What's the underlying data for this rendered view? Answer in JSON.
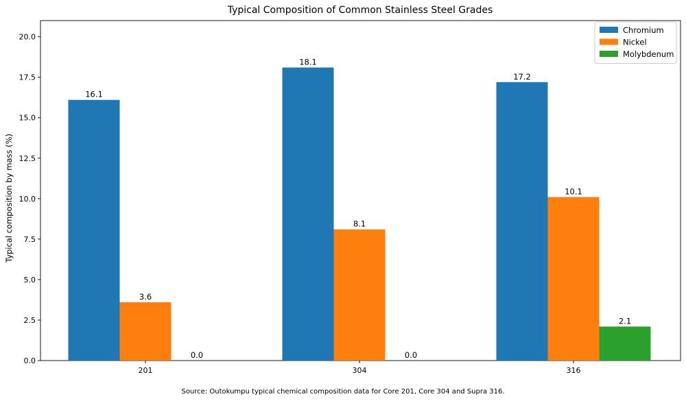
{
  "chart_data": {
    "type": "bar",
    "title": "Typical Composition of Common Stainless Steel Grades",
    "xlabel": "",
    "ylabel": "Typical composition by mass (%)",
    "categories": [
      "201",
      "304",
      "316"
    ],
    "series": [
      {
        "name": "Chromium",
        "values": [
          16.1,
          18.1,
          17.2
        ],
        "color": "#1f77b4"
      },
      {
        "name": "Nickel",
        "values": [
          3.6,
          8.1,
          10.1
        ],
        "color": "#ff7f0e"
      },
      {
        "name": "Molybdenum",
        "values": [
          0.0,
          0.0,
          2.1
        ],
        "color": "#2ca02c"
      }
    ],
    "ylim": [
      0,
      21
    ],
    "yticks": [
      0.0,
      2.5,
      5.0,
      7.5,
      10.0,
      12.5,
      15.0,
      17.5,
      20.0
    ],
    "legend": "top-right",
    "grid": false,
    "source": "Source: Outokumpu typical chemical composition data for Core 201, Core 304 and Supra 316."
  }
}
